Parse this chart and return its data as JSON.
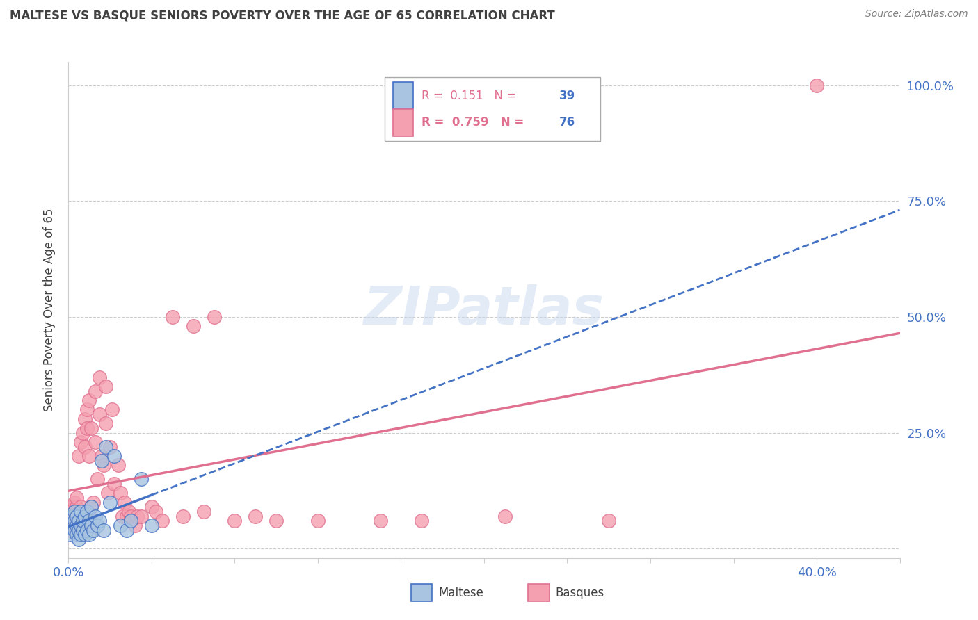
{
  "title": "MALTESE VS BASQUE SENIORS POVERTY OVER THE AGE OF 65 CORRELATION CHART",
  "source": "Source: ZipAtlas.com",
  "ylabel": "Seniors Poverty Over the Age of 65",
  "watermark": "ZIPatlas",
  "xlim": [
    0.0,
    0.4
  ],
  "ylim": [
    -0.02,
    1.05
  ],
  "xtick_positions": [
    0.0,
    0.4
  ],
  "xtick_labels": [
    "0.0%",
    "40.0%"
  ],
  "ytick_positions": [
    0.0,
    0.25,
    0.5,
    0.75,
    1.0
  ],
  "right_ytick_labels": [
    "",
    "25.0%",
    "50.0%",
    "75.0%",
    "100.0%"
  ],
  "maltese_color": "#a8c4e0",
  "basque_color": "#f4a0b0",
  "maltese_line_color": "#4472c4",
  "basque_line_color": "#e07090",
  "title_color": "#404040",
  "source_color": "#808080",
  "axis_label_color": "#404040",
  "maltese_R": 0.151,
  "maltese_N": 39,
  "basque_R": 0.759,
  "basque_N": 76,
  "maltese_x": [
    0.001,
    0.002,
    0.002,
    0.003,
    0.003,
    0.003,
    0.004,
    0.004,
    0.004,
    0.005,
    0.005,
    0.005,
    0.006,
    0.006,
    0.006,
    0.007,
    0.007,
    0.008,
    0.008,
    0.009,
    0.009,
    0.01,
    0.01,
    0.011,
    0.011,
    0.012,
    0.013,
    0.014,
    0.015,
    0.016,
    0.017,
    0.018,
    0.02,
    0.022,
    0.025,
    0.028,
    0.03,
    0.035,
    0.04
  ],
  "maltese_y": [
    0.03,
    0.05,
    0.07,
    0.04,
    0.06,
    0.08,
    0.03,
    0.05,
    0.07,
    0.02,
    0.04,
    0.06,
    0.03,
    0.05,
    0.08,
    0.04,
    0.06,
    0.03,
    0.07,
    0.04,
    0.08,
    0.03,
    0.06,
    0.05,
    0.09,
    0.04,
    0.07,
    0.05,
    0.06,
    0.19,
    0.04,
    0.22,
    0.1,
    0.2,
    0.05,
    0.04,
    0.06,
    0.15,
    0.05
  ],
  "basque_x": [
    0.001,
    0.001,
    0.002,
    0.002,
    0.002,
    0.003,
    0.003,
    0.003,
    0.003,
    0.004,
    0.004,
    0.004,
    0.004,
    0.005,
    0.005,
    0.005,
    0.005,
    0.006,
    0.006,
    0.006,
    0.006,
    0.007,
    0.007,
    0.007,
    0.008,
    0.008,
    0.008,
    0.009,
    0.009,
    0.009,
    0.01,
    0.01,
    0.01,
    0.011,
    0.011,
    0.012,
    0.013,
    0.013,
    0.014,
    0.015,
    0.015,
    0.016,
    0.017,
    0.018,
    0.018,
    0.019,
    0.02,
    0.021,
    0.022,
    0.024,
    0.025,
    0.026,
    0.027,
    0.028,
    0.029,
    0.03,
    0.032,
    0.033,
    0.035,
    0.04,
    0.042,
    0.045,
    0.05,
    0.055,
    0.06,
    0.065,
    0.07,
    0.08,
    0.09,
    0.1,
    0.12,
    0.15,
    0.17,
    0.21,
    0.26,
    0.36
  ],
  "basque_y": [
    0.04,
    0.06,
    0.05,
    0.07,
    0.09,
    0.04,
    0.06,
    0.08,
    0.1,
    0.05,
    0.07,
    0.09,
    0.11,
    0.04,
    0.06,
    0.08,
    0.2,
    0.05,
    0.07,
    0.09,
    0.23,
    0.06,
    0.08,
    0.25,
    0.07,
    0.22,
    0.28,
    0.08,
    0.26,
    0.3,
    0.07,
    0.2,
    0.32,
    0.09,
    0.26,
    0.1,
    0.23,
    0.34,
    0.15,
    0.29,
    0.37,
    0.2,
    0.18,
    0.27,
    0.35,
    0.12,
    0.22,
    0.3,
    0.14,
    0.18,
    0.12,
    0.07,
    0.1,
    0.07,
    0.08,
    0.07,
    0.05,
    0.07,
    0.07,
    0.09,
    0.08,
    0.06,
    0.5,
    0.07,
    0.48,
    0.08,
    0.5,
    0.06,
    0.07,
    0.06,
    0.06,
    0.06,
    0.06,
    0.07,
    0.06,
    1.0
  ]
}
